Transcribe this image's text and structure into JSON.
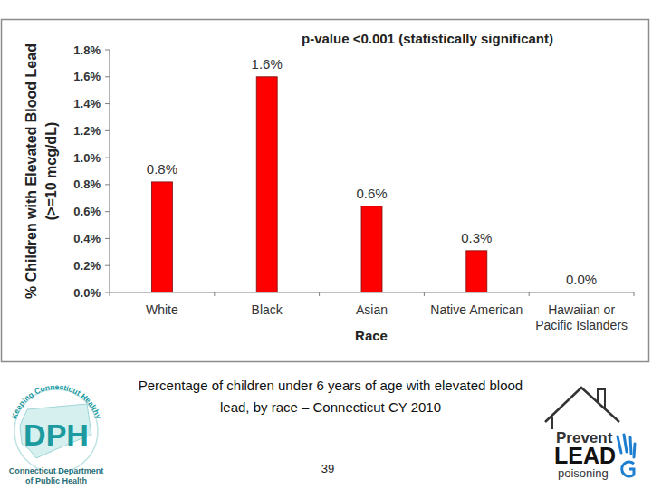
{
  "chart_data": {
    "type": "bar",
    "title": "p-value <0.001 (statistically significant)",
    "x_label": "Race",
    "y_label": "% Children with Elevated Blood Lead (>=10 mcg/dL)",
    "categories": [
      "White",
      "Black",
      "Asian",
      "Native American",
      "Hawaiian or Pacific Islanders"
    ],
    "values": [
      0.82,
      1.6,
      0.64,
      0.31,
      0
    ],
    "value_labels": [
      "0.8%",
      "1.6%",
      "0.6%",
      "0.3%",
      "0.0%"
    ],
    "color": "#ff0000",
    "ylim": [
      0,
      1.8
    ],
    "yticks": [
      {
        "value": 0,
        "label": "0.0%"
      },
      {
        "value": 0.2,
        "label": "0.2%"
      },
      {
        "value": 0.4,
        "label": "0.4%"
      },
      {
        "value": 0.6,
        "label": "0.6%"
      },
      {
        "value": 0.8,
        "label": "0.8%"
      },
      {
        "value": 1.0,
        "label": "1.0%"
      },
      {
        "value": 1.2,
        "label": "1.2%"
      },
      {
        "value": 1.4,
        "label": "1.4%"
      },
      {
        "value": 1.6,
        "label": "1.6%"
      },
      {
        "value": 1.8,
        "label": "1.8%"
      }
    ],
    "grid": false,
    "data_labels": true
  },
  "caption": "Percentage of children under 6 years of age with elevated blood lead, by race – Connecticut CY 2010",
  "page_number": 39,
  "logos": {
    "left": {
      "arc_text": "Keeping Connecticut Healthy",
      "initials": "DPH",
      "name": [
        "Connecticut Department",
        "of Public Health"
      ]
    },
    "right": {
      "line1": "Prevent",
      "line2": "LEAD",
      "line3": "poisoning"
    }
  }
}
